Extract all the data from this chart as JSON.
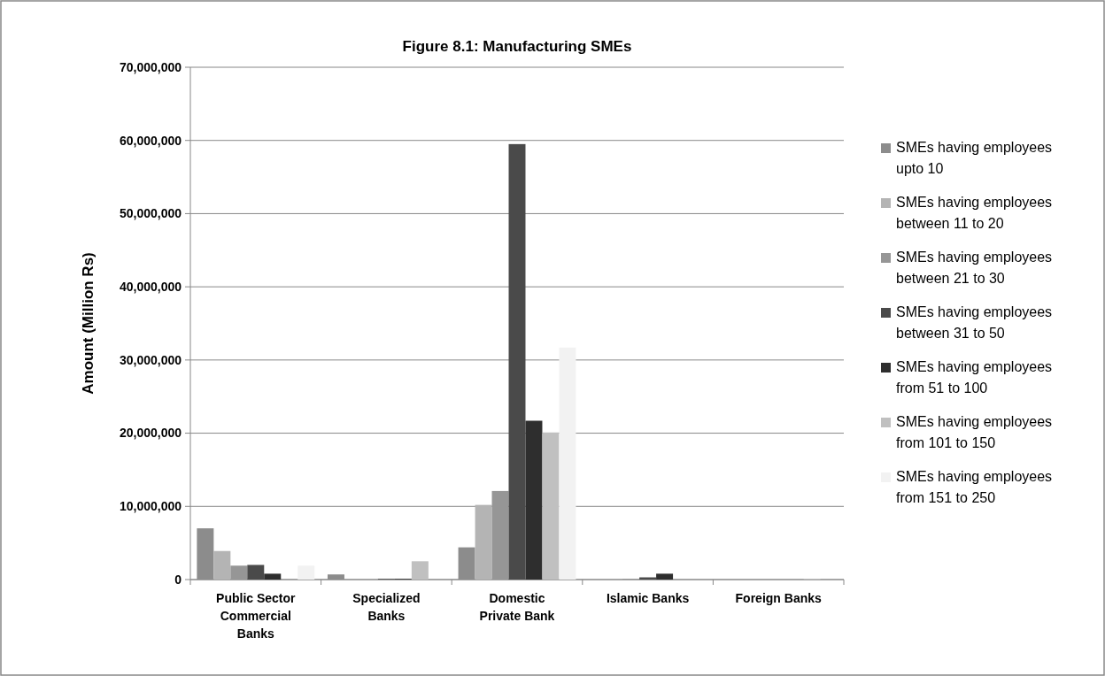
{
  "chart_data": {
    "type": "bar",
    "title": "Figure 8.1: Manufacturing SMEs",
    "ylabel": "Amount (Million Rs)",
    "categories": [
      "Public Sector Commercial Banks",
      "Specialized Banks",
      "Domestic Private Bank",
      "Islamic Banks",
      "Foreign Banks"
    ],
    "series": [
      {
        "name": "SMEs having employees upto 10",
        "color": "#8c8c8c",
        "values": [
          7000000,
          700000,
          4400000,
          0,
          0
        ]
      },
      {
        "name": "SMEs having employees between 11 to 20",
        "color": "#b4b4b4",
        "values": [
          3900000,
          null,
          10200000,
          null,
          0
        ]
      },
      {
        "name": "SMEs having employees between 21 to 30",
        "color": "#969696",
        "values": [
          1900000,
          0,
          12100000,
          100000,
          0
        ]
      },
      {
        "name": "SMEs having employees between 31 to 50",
        "color": "#4a4a4a",
        "values": [
          2000000,
          100000,
          59500000,
          300000,
          0
        ]
      },
      {
        "name": "SMEs having employees from 51 to 100",
        "color": "#2e2e2e",
        "values": [
          800000,
          100000,
          21700000,
          800000,
          0
        ]
      },
      {
        "name": "SMEs having employees from 101 to 150",
        "color": "#c0c0c0",
        "values": [
          0,
          2500000,
          20100000,
          0,
          100000
        ]
      },
      {
        "name": "SMEs having employees from 151 to 250",
        "color": "#f2f2f2",
        "values": [
          1900000,
          0,
          31700000,
          0,
          0
        ]
      }
    ],
    "ylim": [
      0,
      70000000
    ],
    "yticks": [
      {
        "value": 0,
        "label": "0"
      },
      {
        "value": 10000000,
        "label": "10,000,000"
      },
      {
        "value": 20000000,
        "label": "20,000,000"
      },
      {
        "value": 30000000,
        "label": "30,000,000"
      },
      {
        "value": 40000000,
        "label": "40,000,000"
      },
      {
        "value": 50000000,
        "label": "50,000,000"
      },
      {
        "value": 60000000,
        "label": "60,000,000"
      },
      {
        "value": 70000000,
        "label": "70,000,000"
      }
    ],
    "grid": "y",
    "legend": "right"
  }
}
